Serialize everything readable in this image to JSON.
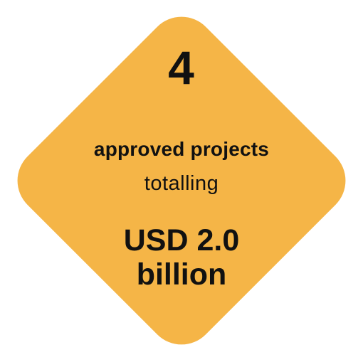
{
  "colors": {
    "diamond_fill": "#F5B547",
    "text": "#111111",
    "background": "#FFFFFF"
  },
  "stat": {
    "number": "4",
    "title": "approved projects",
    "subtitle": "totalling",
    "amount_line1": "USD 2.0",
    "amount_line2": "billion"
  }
}
